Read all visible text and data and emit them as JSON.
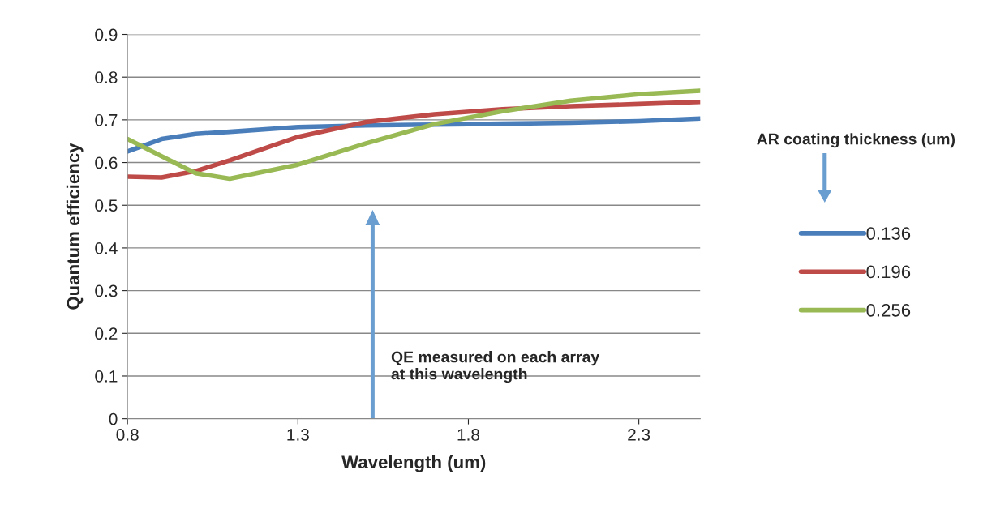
{
  "chart_data": {
    "type": "line",
    "xlabel": "Wavelength (um)",
    "ylabel": "Quantum efficiency",
    "legend_title": "AR coating thickness (um)",
    "legend": "right",
    "grid": "y",
    "marker": "none",
    "line_style": "solid",
    "xlim": [
      0.8,
      2.48
    ],
    "xticks": [
      0.8,
      1.3,
      1.8,
      2.3
    ],
    "ylim": [
      0,
      0.9
    ],
    "yticks": [
      0,
      0.1,
      0.2,
      0.3,
      0.4,
      0.5,
      0.6,
      0.7,
      0.8,
      0.9
    ],
    "x": [
      0.8,
      0.9,
      1.0,
      1.1,
      1.3,
      1.5,
      1.7,
      1.9,
      2.1,
      2.3,
      2.48
    ],
    "series": [
      {
        "name": "0.136",
        "color": "#4a7ebb",
        "values": [
          0.626,
          0.655,
          0.667,
          0.672,
          0.683,
          0.687,
          0.689,
          0.691,
          0.693,
          0.697,
          0.703
        ]
      },
      {
        "name": "0.196",
        "color": "#be4b48",
        "values": [
          0.567,
          0.565,
          0.58,
          0.605,
          0.66,
          0.695,
          0.713,
          0.725,
          0.732,
          0.737,
          0.742
        ]
      },
      {
        "name": "0.256",
        "color": "#98b954",
        "values": [
          0.655,
          0.615,
          0.575,
          0.562,
          0.595,
          0.645,
          0.69,
          0.72,
          0.745,
          0.76,
          0.768
        ]
      }
    ],
    "annotations": [
      "QE measured on each array\nat this wavelength"
    ]
  }
}
